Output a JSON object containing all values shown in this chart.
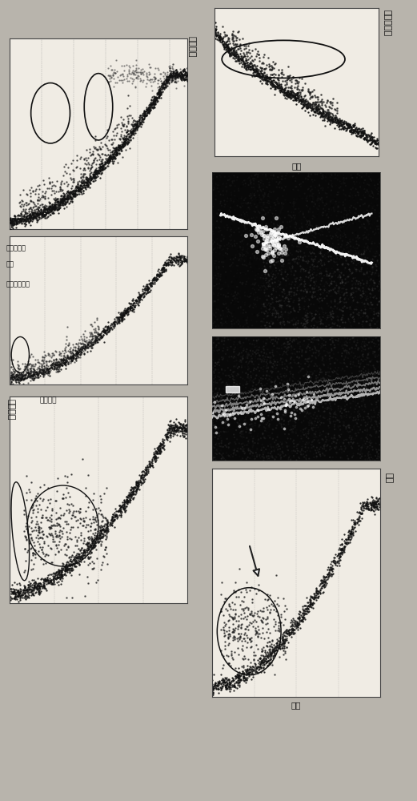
{
  "bg_color": "#b8b4ac",
  "panel_bg": "#f0ece4",
  "scatter_color": "#111111",
  "photo_bg": "#080808",
  "title_top_left": "低于额定",
  "label_pitch_ctrl": "节距控制器",
  "label_mixed": "混乱",
  "label_wind_estimating": "风速正在评估",
  "title_bot_left": "超出额定",
  "label_pitch_fault": "节距故障",
  "title_top_right": "叶片上结冰",
  "label_gong_lv": "功率",
  "label_feng_su": "风速",
  "font_size": 7
}
